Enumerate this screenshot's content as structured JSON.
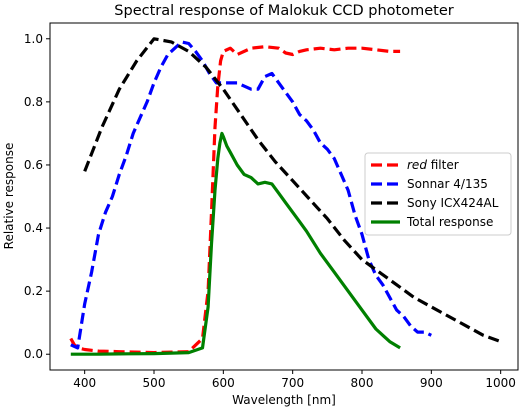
{
  "chart_data": {
    "type": "line",
    "title": "Spectral response of Malokuk CCD photometer",
    "xlabel": "Wavelength [nm]",
    "ylabel": "Relative response",
    "xlim": [
      350,
      1025
    ],
    "ylim": [
      -0.05,
      1.05
    ],
    "xticks": [
      400,
      500,
      600,
      700,
      800,
      900,
      1000
    ],
    "yticks": [
      0.0,
      0.2,
      0.4,
      0.6,
      0.8,
      1.0
    ],
    "xtick_labels": [
      "400",
      "500",
      "600",
      "700",
      "800",
      "900",
      "1000"
    ],
    "ytick_labels": [
      "0.0",
      "0.2",
      "0.4",
      "0.6",
      "0.8",
      "1.0"
    ],
    "legend_position": "right",
    "grid": false,
    "series": [
      {
        "name_prefix": "red",
        "name_suffix": " filter",
        "color": "#ff0000",
        "dashed": true,
        "x": [
          380,
          385,
          390,
          400,
          420,
          450,
          500,
          550,
          570,
          578,
          583,
          588,
          592,
          596,
          600,
          610,
          620,
          640,
          660,
          680,
          690,
          700,
          710,
          720,
          740,
          760,
          780,
          800,
          820,
          840,
          855
        ],
        "y": [
          0.05,
          0.03,
          0.02,
          0.015,
          0.01,
          0.008,
          0.005,
          0.008,
          0.05,
          0.2,
          0.45,
          0.72,
          0.85,
          0.93,
          0.96,
          0.97,
          0.95,
          0.97,
          0.975,
          0.97,
          0.955,
          0.95,
          0.96,
          0.965,
          0.97,
          0.965,
          0.97,
          0.97,
          0.965,
          0.96,
          0.96
        ]
      },
      {
        "name": "Sonnar 4/135",
        "color": "#0000ff",
        "dashed": true,
        "x": [
          380,
          390,
          400,
          410,
          420,
          430,
          440,
          450,
          460,
          470,
          480,
          490,
          500,
          510,
          520,
          530,
          540,
          550,
          560,
          570,
          580,
          590,
          600,
          620,
          640,
          650,
          660,
          670,
          680,
          690,
          700,
          710,
          720,
          730,
          740,
          750,
          760,
          770,
          780,
          790,
          800,
          810,
          820,
          830,
          840,
          850,
          860,
          870,
          880,
          890,
          900
        ],
        "y": [
          0.03,
          0.02,
          0.16,
          0.26,
          0.38,
          0.45,
          0.5,
          0.57,
          0.63,
          0.7,
          0.75,
          0.8,
          0.86,
          0.91,
          0.95,
          0.97,
          0.99,
          0.985,
          0.96,
          0.93,
          0.89,
          0.86,
          0.86,
          0.86,
          0.84,
          0.84,
          0.88,
          0.89,
          0.86,
          0.83,
          0.8,
          0.76,
          0.74,
          0.71,
          0.67,
          0.65,
          0.62,
          0.57,
          0.52,
          0.44,
          0.38,
          0.3,
          0.25,
          0.22,
          0.18,
          0.14,
          0.12,
          0.09,
          0.07,
          0.07,
          0.06
        ]
      },
      {
        "name": "Sony ICX424AL",
        "color": "#000000",
        "dashed": true,
        "x": [
          400,
          425,
          450,
          475,
          500,
          525,
          550,
          575,
          600,
          625,
          650,
          675,
          700,
          725,
          750,
          775,
          800,
          825,
          850,
          875,
          900,
          925,
          950,
          975,
          1000
        ],
        "y": [
          0.58,
          0.72,
          0.84,
          0.93,
          1.0,
          0.99,
          0.96,
          0.91,
          0.84,
          0.76,
          0.68,
          0.61,
          0.55,
          0.49,
          0.43,
          0.36,
          0.3,
          0.26,
          0.22,
          0.18,
          0.15,
          0.12,
          0.09,
          0.06,
          0.04
        ]
      },
      {
        "name": "Total response",
        "color": "#008000",
        "dashed": false,
        "x": [
          380,
          400,
          420,
          450,
          500,
          550,
          570,
          578,
          583,
          588,
          592,
          595,
          598,
          600,
          605,
          610,
          620,
          630,
          640,
          650,
          660,
          670,
          680,
          690,
          700,
          710,
          720,
          740,
          760,
          780,
          800,
          820,
          840,
          855
        ],
        "y": [
          0.0,
          0.0,
          0.0,
          0.001,
          0.002,
          0.005,
          0.02,
          0.15,
          0.35,
          0.52,
          0.62,
          0.67,
          0.7,
          0.69,
          0.66,
          0.64,
          0.6,
          0.57,
          0.56,
          0.54,
          0.545,
          0.54,
          0.51,
          0.48,
          0.45,
          0.42,
          0.39,
          0.32,
          0.26,
          0.2,
          0.14,
          0.08,
          0.04,
          0.02
        ]
      }
    ]
  }
}
